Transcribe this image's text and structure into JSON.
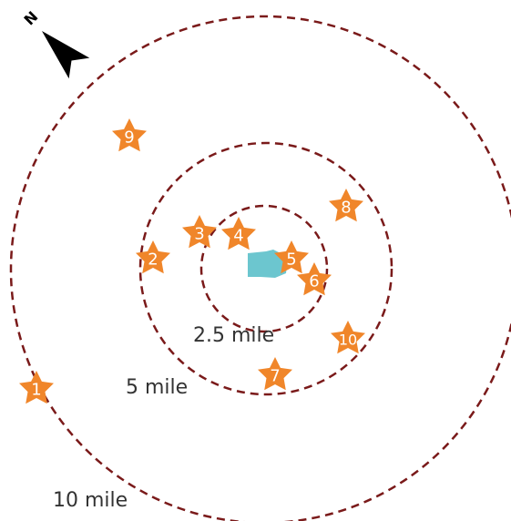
{
  "north_arrow": {
    "label": "N",
    "icon": "north-arrow-icon"
  },
  "rings": [
    {
      "radius_miles": 2.5,
      "label": "2.5 mile"
    },
    {
      "radius_miles": 5,
      "label": "5 mile"
    },
    {
      "radius_miles": 10,
      "label": "10 mile"
    }
  ],
  "center_site": {
    "icon": "site-polygon-icon",
    "color": "#6cc6cf"
  },
  "markers": [
    {
      "label": "1"
    },
    {
      "label": "2"
    },
    {
      "label": "3"
    },
    {
      "label": "4"
    },
    {
      "label": "5"
    },
    {
      "label": "6"
    },
    {
      "label": "7"
    },
    {
      "label": "8"
    },
    {
      "label": "9"
    },
    {
      "label": "10"
    }
  ],
  "colors": {
    "ring": "#7a1a1a",
    "marker": "#f0862a",
    "site": "#6cc6cf"
  }
}
